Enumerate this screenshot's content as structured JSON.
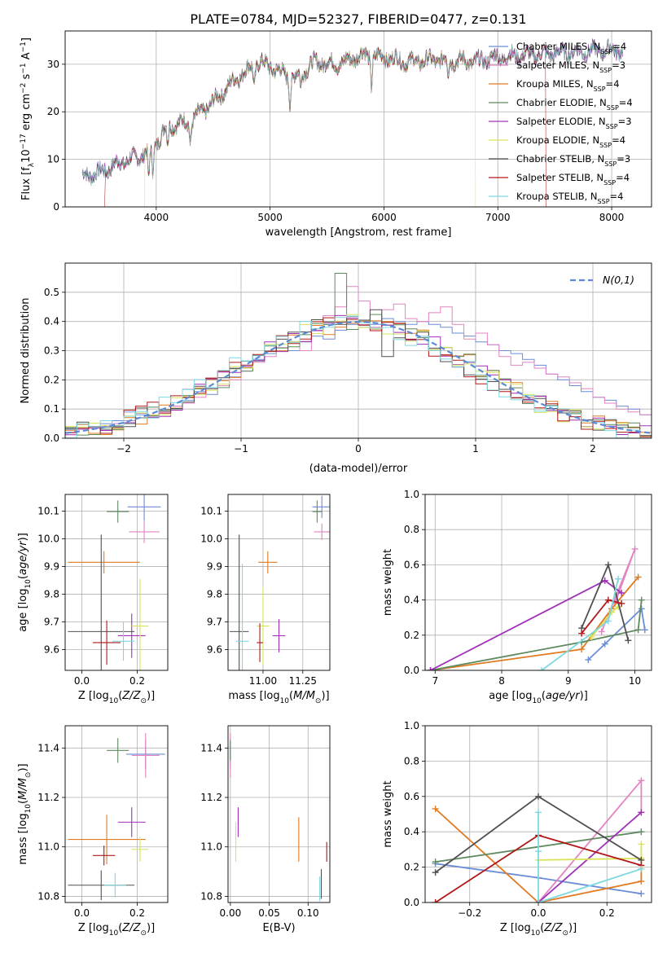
{
  "figure": {
    "title": "PLATE=0784, MJD=52327, FIBERID=0477, z=0.131"
  },
  "models": [
    {
      "name": "Chabrier MILES",
      "nssp": "4",
      "color": "#6b8dd6"
    },
    {
      "name": "Salpeter MILES",
      "nssp": "3",
      "color": "#e384c2"
    },
    {
      "name": "Kroupa MILES",
      "nssp": "4",
      "color": "#e07b22"
    },
    {
      "name": "Chabrier ELODIE",
      "nssp": "4",
      "color": "#5f8a5f"
    },
    {
      "name": "Salpeter ELODIE",
      "nssp": "3",
      "color": "#a030b8"
    },
    {
      "name": "Kroupa ELODIE",
      "nssp": "4",
      "color": "#d8e35a"
    },
    {
      "name": "Chabrier STELIB",
      "nssp": "3",
      "color": "#505050"
    },
    {
      "name": "Salpeter STELIB",
      "nssp": "4",
      "color": "#b01818"
    },
    {
      "name": "Kroupa STELIB",
      "nssp": "4",
      "color": "#7ed8e0"
    }
  ],
  "chart_data": [
    {
      "id": "spectrum",
      "type": "line",
      "xlabel": "wavelength [Angstrom, rest frame]",
      "ylabel": "Flux [f",
      "xlim": [
        3200,
        8350
      ],
      "ylim": [
        0,
        37
      ],
      "xticks": [
        4000,
        5000,
        6000,
        7000,
        8000
      ],
      "yticks": [
        0,
        10,
        20,
        30
      ],
      "legend": "right",
      "series_ranges": [
        [
          3350,
          8100
        ],
        [
          3350,
          8100
        ],
        [
          3350,
          8100
        ],
        [
          3350,
          8100
        ],
        [
          3350,
          8100
        ],
        [
          3900,
          6800
        ],
        [
          3350,
          8100
        ],
        [
          3550,
          7420
        ],
        [
          3350,
          8100
        ]
      ],
      "spectrum_nodes": [
        [
          3350,
          6.5
        ],
        [
          3500,
          7.2
        ],
        [
          3700,
          9.5
        ],
        [
          3850,
          10.5
        ],
        [
          4000,
          13.5
        ],
        [
          4100,
          17
        ],
        [
          4300,
          18
        ],
        [
          4500,
          22
        ],
        [
          4700,
          27
        ],
        [
          4900,
          30.5
        ],
        [
          5000,
          29.5
        ],
        [
          5200,
          27
        ],
        [
          5400,
          30.5
        ],
        [
          5600,
          30
        ],
        [
          5800,
          32
        ],
        [
          6000,
          31.5
        ],
        [
          6200,
          30.5
        ],
        [
          6500,
          31
        ],
        [
          6800,
          30.5
        ],
        [
          7000,
          31.5
        ],
        [
          7300,
          32
        ],
        [
          7600,
          32.5
        ],
        [
          8000,
          33
        ]
      ]
    },
    {
      "id": "residual_hist",
      "type": "bar",
      "xlabel": "(data-model)/error",
      "ylabel": "Normed distribution",
      "xlim": [
        -2.5,
        2.5
      ],
      "ylim": [
        0,
        0.6
      ],
      "xticks": [
        -2,
        -1,
        0,
        1,
        2
      ],
      "yticks": [
        0,
        0.1,
        0.2,
        0.3,
        0.4,
        0.5
      ],
      "bin_width": 0.1,
      "legend_label": "N(0,1)",
      "legend": "top-right",
      "bins_per_model": [
        [
          0.03,
          0.03,
          0.04,
          0.05,
          0.06,
          0.09,
          0.08,
          0.07,
          0.09,
          0.11,
          0.13,
          0.16,
          0.15,
          0.18,
          0.21,
          0.24,
          0.27,
          0.29,
          0.31,
          0.3,
          0.33,
          0.35,
          0.34,
          0.37,
          0.39,
          0.38,
          0.39,
          0.41,
          0.4,
          0.39,
          0.4,
          0.39,
          0.38,
          0.36,
          0.35,
          0.33,
          0.32,
          0.3,
          0.29,
          0.27,
          0.25,
          0.22,
          0.2,
          0.18,
          0.16,
          0.14,
          0.13,
          0.11,
          0.1,
          0.08
        ],
        [
          0.02,
          0.03,
          0.04,
          0.04,
          0.05,
          0.06,
          0.07,
          0.08,
          0.09,
          0.11,
          0.12,
          0.14,
          0.17,
          0.18,
          0.2,
          0.23,
          0.26,
          0.28,
          0.31,
          0.33,
          0.3,
          0.37,
          0.42,
          0.45,
          0.52,
          0.47,
          0.38,
          0.44,
          0.46,
          0.41,
          0.4,
          0.43,
          0.45,
          0.39,
          0.34,
          0.36,
          0.32,
          0.28,
          0.25,
          0.26,
          0.24,
          0.22,
          0.21,
          0.19,
          0.17,
          0.14,
          0.12,
          0.1,
          0.09,
          0.08
        ]
      ],
      "normal_curve": [
        [
          -2.5,
          0.0175
        ],
        [
          -2.0,
          0.054
        ],
        [
          -1.5,
          0.1295
        ],
        [
          -1.0,
          0.242
        ],
        [
          -0.5,
          0.352
        ],
        [
          0.0,
          0.399
        ],
        [
          0.5,
          0.352
        ],
        [
          1.0,
          0.242
        ],
        [
          1.5,
          0.1295
        ],
        [
          2.0,
          0.054
        ],
        [
          2.5,
          0.0175
        ]
      ]
    },
    {
      "id": "age_vs_Z",
      "type": "scatter",
      "xlabel": "Z [log",
      "ylabel": "age  [log",
      "xlim": [
        -0.06,
        0.31
      ],
      "ylim": [
        9.525,
        10.16
      ],
      "xticks": [
        0.0,
        0.2
      ],
      "yticks": [
        9.6,
        9.7,
        9.8,
        9.9,
        10.0,
        10.1
      ],
      "points": [
        {
          "x": 0.225,
          "y": 10.115,
          "xerr": 0.06,
          "yerr": 0.05,
          "model": 0
        },
        {
          "x": 0.225,
          "y": 10.025,
          "xerr": 0.055,
          "yerr": 0.04,
          "model": 1
        },
        {
          "x": 0.08,
          "y": 9.915,
          "xerr": 0.13,
          "yerr": 0.04,
          "model": 2
        },
        {
          "x": 0.13,
          "y": 10.098,
          "xerr": 0.04,
          "yerr": 0.04,
          "model": 3
        },
        {
          "x": 0.18,
          "y": 9.65,
          "xerr": 0.05,
          "yerr": 0.08,
          "model": 4
        },
        {
          "x": 0.21,
          "y": 9.685,
          "xerr": 0.03,
          "yerr": 0.17,
          "model": 5
        },
        {
          "x": 0.07,
          "y": 9.665,
          "xerr": 0.12,
          "yerr": 0.35,
          "model": 6
        },
        {
          "x": 0.09,
          "y": 9.625,
          "xerr": 0.05,
          "yerr": 0.08,
          "model": 7
        },
        {
          "x": 0.15,
          "y": 9.63,
          "xerr": 0.04,
          "yerr": 0.07,
          "model": 8
        }
      ]
    },
    {
      "id": "age_vs_mass",
      "type": "scatter",
      "xlabel": "mass [log",
      "ylabel": "",
      "xlim": [
        10.78,
        11.42
      ],
      "ylim": [
        9.525,
        10.16
      ],
      "xticks": [
        11.0,
        11.25
      ],
      "yticks": [
        9.6,
        9.7,
        9.8,
        9.9,
        10.0,
        10.1
      ],
      "points": [
        {
          "x": 11.37,
          "y": 10.115,
          "xerr": 0.06,
          "yerr": 0.04,
          "model": 0
        },
        {
          "x": 11.37,
          "y": 10.025,
          "xerr": 0.05,
          "yerr": 0.03,
          "model": 1
        },
        {
          "x": 11.03,
          "y": 9.915,
          "xerr": 0.06,
          "yerr": 0.04,
          "model": 2
        },
        {
          "x": 11.34,
          "y": 10.098,
          "xerr": 0.03,
          "yerr": 0.04,
          "model": 3
        },
        {
          "x": 11.1,
          "y": 9.65,
          "xerr": 0.04,
          "yerr": 0.06,
          "model": 4
        },
        {
          "x": 11.0,
          "y": 9.685,
          "xerr": 0.04,
          "yerr": 0.14,
          "model": 5
        },
        {
          "x": 10.85,
          "y": 9.665,
          "xerr": 0.06,
          "yerr": 0.35,
          "model": 6
        },
        {
          "x": 10.98,
          "y": 9.625,
          "xerr": 0.02,
          "yerr": 0.07,
          "model": 7
        },
        {
          "x": 10.87,
          "y": 9.63,
          "xerr": 0.04,
          "yerr": 0.28,
          "model": 8
        }
      ]
    },
    {
      "id": "massweight_vs_age",
      "type": "line",
      "xlabel": "age  [log",
      "ylabel": "mass weight",
      "xlim": [
        6.85,
        10.25
      ],
      "ylim": [
        0,
        1.0
      ],
      "xticks": [
        7,
        8,
        9,
        10
      ],
      "yticks": [
        0.0,
        0.2,
        0.4,
        0.6,
        0.8,
        1.0
      ],
      "series": [
        {
          "model": 0,
          "points": [
            [
              9.3,
              0.06
            ],
            [
              9.55,
              0.15
            ],
            [
              10.1,
              0.35
            ],
            [
              10.15,
              0.23
            ]
          ]
        },
        {
          "model": 1,
          "points": [
            [
              9.5,
              0.22
            ],
            [
              10.0,
              0.69
            ],
            [
              9.7,
              0.38
            ]
          ]
        },
        {
          "model": 2,
          "points": [
            [
              6.93,
              0.0
            ],
            [
              9.2,
              0.12
            ],
            [
              9.65,
              0.35
            ],
            [
              10.05,
              0.53
            ]
          ]
        },
        {
          "model": 3,
          "points": [
            [
              6.93,
              0.0
            ],
            [
              9.2,
              0.16
            ],
            [
              10.05,
              0.23
            ],
            [
              10.1,
              0.4
            ]
          ]
        },
        {
          "model": 4,
          "points": [
            [
              6.93,
              0.0
            ],
            [
              9.55,
              0.51
            ],
            [
              9.8,
              0.44
            ]
          ]
        },
        {
          "model": 5,
          "points": [
            [
              9.35,
              0.19
            ],
            [
              9.65,
              0.33
            ],
            [
              9.75,
              0.36
            ]
          ]
        },
        {
          "model": 6,
          "points": [
            [
              9.2,
              0.24
            ],
            [
              9.6,
              0.6
            ],
            [
              9.9,
              0.17
            ]
          ]
        },
        {
          "model": 7,
          "points": [
            [
              9.2,
              0.21
            ],
            [
              9.6,
              0.4
            ],
            [
              9.8,
              0.38
            ]
          ]
        },
        {
          "model": 8,
          "points": [
            [
              8.6,
              0.0
            ],
            [
              9.6,
              0.28
            ],
            [
              9.75,
              0.52
            ]
          ]
        }
      ]
    },
    {
      "id": "mass_vs_Z",
      "type": "scatter",
      "xlabel": "Z [log",
      "ylabel": "mass [log",
      "xlim": [
        -0.06,
        0.31
      ],
      "ylim": [
        10.775,
        11.49
      ],
      "xticks": [
        0.0,
        0.2
      ],
      "yticks": [
        10.8,
        11.0,
        11.2,
        11.4
      ],
      "points": [
        {
          "x": 0.23,
          "y": 11.375,
          "xerr": 0.07,
          "yerr": 0.06,
          "model": 0
        },
        {
          "x": 0.23,
          "y": 11.37,
          "xerr": 0.05,
          "yerr": 0.09,
          "model": 1
        },
        {
          "x": 0.09,
          "y": 11.03,
          "xerr": 0.14,
          "yerr": 0.1,
          "model": 2
        },
        {
          "x": 0.13,
          "y": 11.39,
          "xerr": 0.04,
          "yerr": 0.05,
          "model": 3
        },
        {
          "x": 0.18,
          "y": 11.1,
          "xerr": 0.05,
          "yerr": 0.06,
          "model": 4
        },
        {
          "x": 0.21,
          "y": 10.99,
          "xerr": 0.03,
          "yerr": 0.05,
          "model": 5
        },
        {
          "x": 0.07,
          "y": 10.845,
          "xerr": 0.12,
          "yerr": 0.06,
          "model": 6
        },
        {
          "x": 0.08,
          "y": 10.965,
          "xerr": 0.04,
          "yerr": 0.04,
          "model": 7
        },
        {
          "x": 0.12,
          "y": 10.845,
          "xerr": 0.04,
          "yerr": 0.05,
          "model": 8
        }
      ]
    },
    {
      "id": "mass_vs_ebv",
      "type": "scatter",
      "xlabel": "E(B-V)",
      "ylabel": "",
      "xlim": [
        -0.003,
        0.128
      ],
      "ylim": [
        10.775,
        11.49
      ],
      "xticks": [
        0.0,
        0.05,
        0.1
      ],
      "yticks": [
        10.8,
        11.0,
        11.2,
        11.4
      ],
      "points": [
        {
          "x": 0.0,
          "y": 11.38,
          "xerr": 0.0,
          "yerr": 0.06,
          "model": 0
        },
        {
          "x": 0.0,
          "y": 11.37,
          "xerr": 0.0,
          "yerr": 0.09,
          "model": 1
        },
        {
          "x": 0.088,
          "y": 11.03,
          "xerr": 0.0,
          "yerr": 0.09,
          "model": 2
        },
        {
          "x": 0.0,
          "y": 11.39,
          "xerr": 0.0,
          "yerr": 0.04,
          "model": 3
        },
        {
          "x": 0.01,
          "y": 11.1,
          "xerr": 0.0,
          "yerr": 0.06,
          "model": 4
        },
        {
          "x": 0.007,
          "y": 11.02,
          "xerr": 0.0,
          "yerr": 0.08,
          "model": 5
        },
        {
          "x": 0.117,
          "y": 10.85,
          "xerr": 0.0,
          "yerr": 0.06,
          "model": 6
        },
        {
          "x": 0.124,
          "y": 10.98,
          "xerr": 0.0,
          "yerr": 0.04,
          "model": 7
        },
        {
          "x": 0.115,
          "y": 10.83,
          "xerr": 0.0,
          "yerr": 0.05,
          "model": 8
        }
      ]
    },
    {
      "id": "massweight_vs_Z",
      "type": "line",
      "xlabel": "Z [log",
      "ylabel": "mass weight",
      "xlim": [
        -0.33,
        0.33
      ],
      "ylim": [
        0,
        1.0
      ],
      "xticks": [
        -0.2,
        0.0,
        0.2
      ],
      "yticks": [
        0.0,
        0.2,
        0.4,
        0.6,
        0.8,
        1.0
      ],
      "series": [
        {
          "model": 0,
          "points": [
            [
              -0.3,
              0.22
            ],
            [
              0.0,
              0.14
            ],
            [
              0.3,
              0.05
            ]
          ]
        },
        {
          "model": 1,
          "points": [
            [
              0.0,
              0.0
            ],
            [
              0.3,
              0.69
            ],
            [
              0.3,
              0.51
            ]
          ]
        },
        {
          "model": 2,
          "points": [
            [
              -0.3,
              0.53
            ],
            [
              0.0,
              0.0
            ],
            [
              0.3,
              0.12
            ],
            [
              0.3,
              0.25
            ]
          ]
        },
        {
          "model": 3,
          "points": [
            [
              -0.3,
              0.23
            ],
            [
              0.3,
              0.4
            ]
          ]
        },
        {
          "model": 4,
          "points": [
            [
              0.0,
              0.0
            ],
            [
              0.3,
              0.51
            ]
          ]
        },
        {
          "model": 5,
          "points": [
            [
              0.0,
              0.24
            ],
            [
              0.3,
              0.25
            ],
            [
              0.3,
              0.33
            ]
          ]
        },
        {
          "model": 6,
          "points": [
            [
              -0.3,
              0.17
            ],
            [
              0.0,
              0.6
            ],
            [
              0.3,
              0.24
            ]
          ]
        },
        {
          "model": 7,
          "points": [
            [
              -0.3,
              0.0
            ],
            [
              0.0,
              0.38
            ],
            [
              0.3,
              0.21
            ]
          ]
        },
        {
          "model": 8,
          "points": [
            [
              0.0,
              0.51
            ],
            [
              0.0,
              0.29
            ],
            [
              0.0,
              0.0
            ],
            [
              0.3,
              0.19
            ]
          ]
        }
      ]
    }
  ]
}
